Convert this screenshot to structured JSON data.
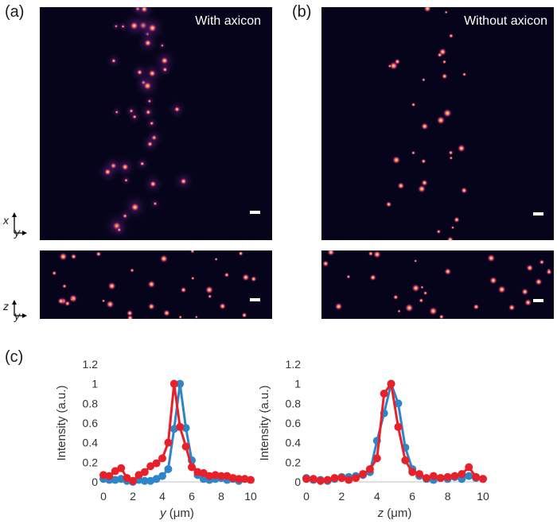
{
  "panel_labels": {
    "a": "(a)",
    "b": "(b)",
    "c": "(c)"
  },
  "titles": {
    "with": "With axicon",
    "without": "Without axicon"
  },
  "axes_labels": {
    "top": {
      "v": "x",
      "h": "y"
    },
    "bottom": {
      "v": "z",
      "h": "y"
    }
  },
  "colors": {
    "blue": "#2e86c9",
    "red": "#e8202a",
    "image_bg": "#06041a"
  },
  "chart_data": [
    {
      "type": "line",
      "xlabel_var": "y",
      "xlabel_unit": " (μm)",
      "ylabel": "Intensity (a.u.)",
      "xlim": [
        0,
        10
      ],
      "ylim": [
        0,
        1.2
      ],
      "xticks": [
        "0",
        "2",
        "4",
        "6",
        "8",
        "10"
      ],
      "yticks": [
        "0",
        "0.2",
        "0.4",
        "0.6",
        "0.8",
        "1",
        "1.2"
      ],
      "series": [
        {
          "color": "#2e86c9",
          "x": [
            0,
            0.4,
            0.8,
            1.2,
            1.6,
            2.0,
            2.4,
            2.8,
            3.2,
            3.6,
            4.0,
            4.4,
            4.8,
            5.2,
            5.6,
            6.0,
            6.4,
            6.8,
            7.2,
            7.6,
            8.0,
            8.4,
            8.8,
            9.2
          ],
          "values": [
            0.03,
            0.02,
            0.02,
            0.03,
            0.01,
            0.0,
            0.02,
            0.01,
            0.01,
            0.03,
            0.06,
            0.13,
            0.54,
            1.0,
            0.55,
            0.22,
            0.07,
            0.03,
            0.02,
            0.03,
            0.04,
            0.02,
            0.03,
            0.01
          ]
        },
        {
          "color": "#e8202a",
          "x": [
            0,
            0.4,
            0.8,
            1.2,
            1.6,
            2.0,
            2.4,
            2.8,
            3.2,
            3.6,
            4.0,
            4.4,
            4.8,
            5.2,
            5.6,
            6.0,
            6.4,
            6.8,
            7.2,
            7.6,
            8.0,
            8.4,
            8.8,
            9.2,
            9.6,
            10.0
          ],
          "values": [
            0.07,
            0.06,
            0.11,
            0.14,
            0.04,
            0.01,
            0.07,
            0.1,
            0.16,
            0.19,
            0.24,
            0.4,
            1.0,
            0.56,
            0.36,
            0.15,
            0.1,
            0.09,
            0.06,
            0.07,
            0.06,
            0.06,
            0.04,
            0.03,
            0.03,
            0.02
          ]
        }
      ]
    },
    {
      "type": "line",
      "xlabel_var": "z",
      "xlabel_unit": " (μm)",
      "ylabel": "Intensity (a.u.)",
      "xlim": [
        0,
        10
      ],
      "ylim": [
        0,
        1.2
      ],
      "xticks": [
        "0",
        "2",
        "4",
        "6",
        "8",
        "10"
      ],
      "yticks": [
        "0",
        "0.2",
        "0.4",
        "0.6",
        "0.8",
        "1",
        "1.2"
      ],
      "series": [
        {
          "color": "#2e86c9",
          "x": [
            0,
            0.4,
            0.8,
            1.2,
            1.6,
            2.0,
            2.4,
            2.8,
            3.2,
            3.6,
            4.0,
            4.4,
            4.8,
            5.2,
            5.6,
            6.0,
            6.4,
            6.8,
            7.2,
            7.6,
            8.0,
            8.4,
            8.8,
            9.2,
            9.6,
            10.0
          ],
          "values": [
            0.04,
            0.02,
            0.02,
            0.01,
            0.03,
            0.05,
            0.05,
            0.06,
            0.07,
            0.1,
            0.42,
            0.7,
            1.0,
            0.8,
            0.35,
            0.13,
            0.06,
            0.03,
            0.02,
            0.04,
            0.03,
            0.05,
            0.03,
            0.06,
            0.04,
            0.03
          ]
        },
        {
          "color": "#e8202a",
          "x": [
            0,
            0.4,
            0.8,
            1.2,
            1.6,
            2.0,
            2.4,
            2.8,
            3.2,
            3.6,
            4.0,
            4.4,
            4.8,
            5.2,
            5.6,
            6.0,
            6.4,
            6.8,
            7.2,
            7.6,
            8.0,
            8.4,
            8.8,
            9.2,
            9.6,
            10.0
          ],
          "values": [
            0.03,
            0.03,
            0.01,
            0.02,
            0.04,
            0.04,
            0.02,
            0.04,
            0.08,
            0.13,
            0.24,
            0.9,
            1.0,
            0.56,
            0.22,
            0.1,
            0.08,
            0.04,
            0.06,
            0.04,
            0.05,
            0.06,
            0.08,
            0.15,
            0.05,
            0.03
          ]
        }
      ]
    }
  ]
}
